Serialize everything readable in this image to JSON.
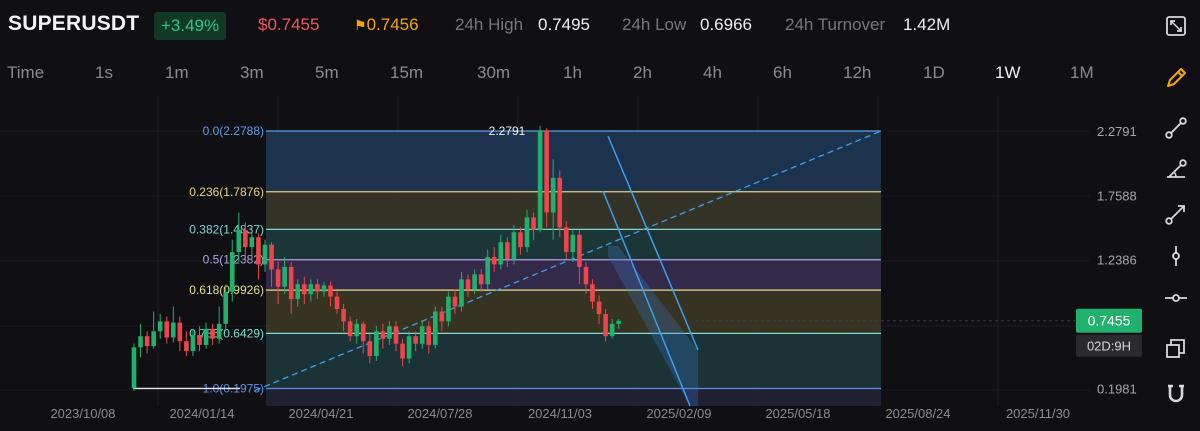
{
  "header": {
    "symbol": "SUPERUSDT",
    "change": "+3.49%",
    "last_price": "$0.7455",
    "mark_price": "0.7456",
    "high_label": "24h High",
    "high_value": "0.7495",
    "low_label": "24h Low",
    "low_value": "0.6966",
    "turnover_label": "24h Turnover",
    "turnover_value": "1.42M"
  },
  "intervals": [
    "Time",
    "1s",
    "1m",
    "3m",
    "5m",
    "15m",
    "30m",
    "1h",
    "2h",
    "4h",
    "6h",
    "12h",
    "1D",
    "1W",
    "1M"
  ],
  "active_interval": "1W",
  "chart_data": {
    "type": "candlestick",
    "y_axis_ticks": [
      "2.2791",
      "1.7588",
      "1.2386",
      "0.1981"
    ],
    "y_scale": "linear",
    "ylim": [
      0.06,
      2.52
    ],
    "x_axis_ticks": [
      "2023/10/08",
      "2024/01/14",
      "2024/04/21",
      "2024/07/28",
      "2024/11/03",
      "2025/02/09",
      "2025/05/18",
      "2025/08/24",
      "2025/11/30"
    ],
    "current_price_label": "0.7455",
    "countdown_label": "02D:9H",
    "peak_label": "2.2791",
    "low_label": "0.1981",
    "fib_levels": [
      {
        "label": "0.0(2.2788)",
        "value": 2.2788,
        "color": "#5f9ee6",
        "fill": "#1e3a58"
      },
      {
        "label": "0.236(1.7876)",
        "value": 1.7876,
        "color": "#e6d27a",
        "fill": "#3a3a2a"
      },
      {
        "label": "0.382(1.4837)",
        "value": 1.4837,
        "color": "#7fd6d0",
        "fill": "#1f3d3d"
      },
      {
        "label": "0.5(1.2382)",
        "value": 1.2382,
        "color": "#b59ee6",
        "fill": "#3a2e52"
      },
      {
        "label": "0.618(0.9926)",
        "value": 0.9926,
        "color": "#e6de8a",
        "fill": "#3d3a24"
      },
      {
        "label": "0.786(0.6429)",
        "value": 0.6429,
        "color": "#7fdcd2",
        "fill": "#1d3a3c"
      },
      {
        "label": "1.0(0.1975)",
        "value": 0.1975,
        "color": "#5f8ee6",
        "fill": "#25283a"
      }
    ],
    "candles": [
      [
        0.2,
        0.53,
        0.18,
        0.56
      ],
      [
        0.53,
        0.62,
        0.45,
        0.72
      ],
      [
        0.62,
        0.54,
        0.48,
        0.66
      ],
      [
        0.54,
        0.66,
        0.52,
        0.82
      ],
      [
        0.66,
        0.74,
        0.6,
        0.8
      ],
      [
        0.74,
        0.61,
        0.56,
        0.78
      ],
      [
        0.61,
        0.73,
        0.57,
        0.86
      ],
      [
        0.73,
        0.58,
        0.5,
        0.78
      ],
      [
        0.58,
        0.5,
        0.46,
        0.66
      ],
      [
        0.5,
        0.63,
        0.46,
        0.68
      ],
      [
        0.63,
        0.55,
        0.5,
        0.7
      ],
      [
        0.55,
        0.68,
        0.52,
        0.73
      ],
      [
        0.68,
        0.6,
        0.55,
        0.72
      ],
      [
        0.6,
        0.72,
        0.56,
        0.86
      ],
      [
        0.72,
        0.98,
        0.66,
        1.04
      ],
      [
        0.98,
        1.3,
        0.9,
        1.4
      ],
      [
        1.3,
        1.48,
        1.22,
        1.62
      ],
      [
        1.48,
        1.34,
        1.22,
        1.54
      ],
      [
        1.34,
        1.42,
        1.22,
        1.46
      ],
      [
        1.42,
        1.2,
        1.08,
        1.45
      ],
      [
        1.2,
        1.36,
        1.14,
        1.4
      ],
      [
        1.36,
        1.16,
        1.02,
        1.38
      ],
      [
        1.16,
        1.02,
        0.88,
        1.22
      ],
      [
        1.02,
        1.18,
        0.96,
        1.26
      ],
      [
        1.18,
        0.92,
        0.8,
        1.22
      ],
      [
        0.92,
        1.04,
        0.86,
        1.08
      ],
      [
        1.04,
        0.96,
        0.88,
        1.1
      ],
      [
        0.96,
        1.04,
        0.9,
        1.08
      ],
      [
        1.04,
        0.98,
        0.92,
        1.08
      ],
      [
        0.98,
        1.03,
        0.94,
        1.06
      ],
      [
        1.03,
        0.94,
        0.86,
        1.06
      ],
      [
        0.94,
        0.84,
        0.8,
        0.98
      ],
      [
        0.84,
        0.74,
        0.66,
        0.88
      ],
      [
        0.74,
        0.62,
        0.58,
        0.78
      ],
      [
        0.62,
        0.72,
        0.56,
        0.76
      ],
      [
        0.72,
        0.58,
        0.48,
        0.74
      ],
      [
        0.58,
        0.46,
        0.4,
        0.64
      ],
      [
        0.46,
        0.66,
        0.42,
        0.7
      ],
      [
        0.66,
        0.6,
        0.52,
        0.72
      ],
      [
        0.6,
        0.7,
        0.55,
        0.74
      ],
      [
        0.7,
        0.56,
        0.5,
        0.74
      ],
      [
        0.56,
        0.44,
        0.38,
        0.6
      ],
      [
        0.44,
        0.62,
        0.4,
        0.66
      ],
      [
        0.62,
        0.56,
        0.5,
        0.66
      ],
      [
        0.56,
        0.7,
        0.52,
        0.74
      ],
      [
        0.7,
        0.55,
        0.48,
        0.74
      ],
      [
        0.55,
        0.82,
        0.52,
        0.86
      ],
      [
        0.82,
        0.74,
        0.66,
        0.86
      ],
      [
        0.74,
        0.94,
        0.7,
        0.98
      ],
      [
        0.94,
        0.86,
        0.8,
        1.0
      ],
      [
        0.86,
        1.08,
        0.82,
        1.14
      ],
      [
        1.08,
        1.0,
        0.94,
        1.12
      ],
      [
        1.0,
        1.12,
        0.96,
        1.16
      ],
      [
        1.12,
        1.04,
        0.98,
        1.16
      ],
      [
        1.04,
        1.26,
        1.0,
        1.32
      ],
      [
        1.26,
        1.2,
        1.14,
        1.34
      ],
      [
        1.2,
        1.38,
        1.16,
        1.44
      ],
      [
        1.38,
        1.24,
        1.18,
        1.42
      ],
      [
        1.24,
        1.46,
        1.2,
        1.52
      ],
      [
        1.46,
        1.34,
        1.28,
        1.5
      ],
      [
        1.34,
        1.58,
        1.3,
        1.64
      ],
      [
        1.58,
        1.48,
        1.4,
        1.62
      ],
      [
        1.48,
        2.28,
        1.46,
        2.32
      ],
      [
        2.28,
        1.62,
        1.5,
        2.3
      ],
      [
        1.62,
        1.9,
        1.4,
        2.05
      ],
      [
        1.9,
        1.5,
        1.42,
        1.96
      ],
      [
        1.5,
        1.3,
        1.24,
        1.55
      ],
      [
        1.3,
        1.44,
        1.22,
        1.48
      ],
      [
        1.44,
        1.18,
        1.04,
        1.48
      ],
      [
        1.18,
        1.04,
        0.96,
        1.22
      ],
      [
        1.04,
        0.9,
        0.84,
        1.08
      ],
      [
        0.9,
        0.8,
        0.72,
        0.95
      ],
      [
        0.8,
        0.62,
        0.58,
        0.84
      ],
      [
        0.62,
        0.72,
        0.6,
        0.76
      ],
      [
        0.72,
        0.745,
        0.68,
        0.76
      ]
    ]
  }
}
